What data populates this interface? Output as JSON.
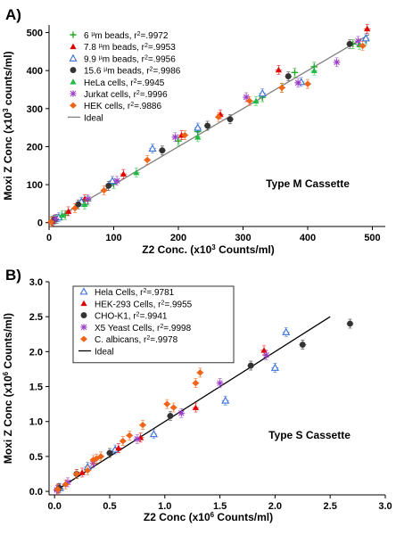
{
  "panel_labels": [
    "A)",
    "B)"
  ],
  "chart_data": [
    {
      "type": "scatter",
      "panel": "A)",
      "xlabel_parts": [
        "Z2 Conc. (x10",
        "3",
        " Counts/ml)"
      ],
      "ylabel_parts": [
        "Moxi Z Conc (x10",
        "3",
        " counts/ml)"
      ],
      "xlim": [
        0,
        520
      ],
      "ylim": [
        -10,
        520
      ],
      "xticks": [
        0,
        100,
        200,
        300,
        400,
        500
      ],
      "yticks": [
        0,
        100,
        200,
        300,
        400,
        500
      ],
      "annotation": "Type M Cassette",
      "legend_position": "top-left",
      "ideal": {
        "name": "Ideal",
        "x": [
          0,
          495
        ],
        "y": [
          0,
          495
        ],
        "color": "#808080"
      },
      "series": [
        {
          "name_parts": [
            "6 ",
            "µ",
            "m beads, r",
            "2",
            "=.9972"
          ],
          "marker": "plus",
          "color": "#22aa22",
          "points": [
            [
              5,
              5
            ],
            [
              12,
              10
            ],
            [
              25,
              20
            ],
            [
              60,
              58
            ],
            [
              100,
              102
            ],
            [
              200,
              215
            ],
            [
              230,
              240
            ],
            [
              330,
              330
            ],
            [
              360,
              355
            ],
            [
              380,
              395
            ],
            [
              410,
              410
            ],
            [
              470,
              470
            ],
            [
              490,
              480
            ]
          ]
        },
        {
          "name_parts": [
            "7.8 ",
            "µ",
            "m beads, r",
            "2",
            "=.9953"
          ],
          "marker": "triangle",
          "color": "#e00000",
          "points": [
            [
              5,
              4
            ],
            [
              30,
              30
            ],
            [
              55,
              62
            ],
            [
              115,
              128
            ],
            [
              205,
              230
            ],
            [
              265,
              285
            ],
            [
              355,
              402
            ],
            [
              492,
              510
            ]
          ]
        },
        {
          "name_parts": [
            "9.9 ",
            "µ",
            "m beads, r",
            "2",
            "=.9956"
          ],
          "marker": "triangle-open",
          "color": "#3a6fd8",
          "points": [
            [
              15,
              14
            ],
            [
              50,
              55
            ],
            [
              98,
              110
            ],
            [
              160,
              195
            ],
            [
              230,
              250
            ],
            [
              330,
              340
            ],
            [
              390,
              370
            ],
            [
              490,
              485
            ]
          ]
        },
        {
          "name_parts": [
            "15.6 ",
            "µ",
            "m beads, r",
            "2",
            "=.9986"
          ],
          "marker": "circle",
          "color": "#333333",
          "points": [
            [
              8,
              8
            ],
            [
              45,
              48
            ],
            [
              92,
              97
            ],
            [
              175,
              190
            ],
            [
              245,
              255
            ],
            [
              280,
              272
            ],
            [
              370,
              385
            ],
            [
              465,
              470
            ]
          ]
        },
        {
          "name_parts": [
            "HeLa cells, r",
            "2",
            "=.9945"
          ],
          "marker": "triangle",
          "color": "#22bb44",
          "points": [
            [
              20,
              20
            ],
            [
              55,
              48
            ],
            [
              135,
              132
            ],
            [
              230,
              225
            ],
            [
              320,
              320
            ],
            [
              410,
              400
            ],
            [
              480,
              468
            ]
          ]
        },
        {
          "name_parts": [
            "Jurkat cells, r",
            "2",
            "=.9996"
          ],
          "marker": "star",
          "color": "#9a3ec8",
          "points": [
            [
              10,
              10
            ],
            [
              60,
              62
            ],
            [
              105,
              110
            ],
            [
              195,
              225
            ],
            [
              305,
              330
            ],
            [
              385,
              368
            ],
            [
              445,
              422
            ],
            [
              478,
              478
            ]
          ]
        },
        {
          "name_parts": [
            "HEK cells, r",
            "2",
            "=.9886"
          ],
          "marker": "diamond",
          "color": "#f06418",
          "points": [
            [
              3,
              2
            ],
            [
              40,
              38
            ],
            [
              85,
              85
            ],
            [
              152,
              165
            ],
            [
              210,
              230
            ],
            [
              262,
              278
            ],
            [
              310,
              320
            ],
            [
              360,
              355
            ],
            [
              400,
              365
            ],
            [
              485,
              465
            ]
          ]
        }
      ],
      "legend_ideal": "Ideal"
    },
    {
      "type": "scatter",
      "panel": "B)",
      "xlabel_parts": [
        "Z2 Conc (x10",
        "6",
        " Counts/ml)"
      ],
      "ylabel_parts": [
        "Moxi Z Conc (x10",
        "6",
        " Counts/ml)"
      ],
      "xlim": [
        -0.05,
        3.0
      ],
      "ylim": [
        -0.05,
        3.0
      ],
      "xticks": [
        0.0,
        0.5,
        1.0,
        1.5,
        2.0,
        2.5,
        3.0
      ],
      "yticks": [
        0.0,
        0.5,
        1.0,
        1.5,
        2.0,
        2.5,
        3.0
      ],
      "xtick_labels": [
        "0.0",
        "0.5",
        "1.0",
        "1.5",
        "2.0",
        "2.5",
        "3.0"
      ],
      "ytick_labels": [
        "0.0",
        "0.5",
        "1.0",
        "1.5",
        "2.0",
        "2.5",
        "3.0"
      ],
      "annotation": "Type S Cassette",
      "legend_position": "top-left",
      "ideal": {
        "name": "Ideal",
        "x": [
          0,
          2.5
        ],
        "y": [
          0,
          2.5
        ],
        "color": "#000000"
      },
      "series": [
        {
          "name_parts": [
            "Hela Cells, r",
            "2",
            "=.9781"
          ],
          "marker": "triangle-open",
          "color": "#3a6fd8",
          "points": [
            [
              0.05,
              0.05
            ],
            [
              0.3,
              0.35
            ],
            [
              0.55,
              0.6
            ],
            [
              0.9,
              0.82
            ],
            [
              1.55,
              1.3
            ],
            [
              2.0,
              1.77
            ],
            [
              2.1,
              2.28
            ]
          ]
        },
        {
          "name_parts": [
            "HEK-293 Cells, r",
            "2",
            "=.9955"
          ],
          "marker": "triangle",
          "color": "#e00000",
          "points": [
            [
              0.03,
              0.04
            ],
            [
              0.25,
              0.27
            ],
            [
              0.58,
              0.62
            ],
            [
              0.78,
              0.77
            ],
            [
              1.28,
              1.2
            ],
            [
              1.9,
              2.02
            ]
          ]
        },
        {
          "name_parts": [
            "CHO-K1, r",
            "2",
            "=.9941"
          ],
          "marker": "circle",
          "color": "#333333",
          "points": [
            [
              0.04,
              0.05
            ],
            [
              0.2,
              0.25
            ],
            [
              0.5,
              0.55
            ],
            [
              1.05,
              1.08
            ],
            [
              1.78,
              1.8
            ],
            [
              2.25,
              2.1
            ],
            [
              2.68,
              2.4
            ]
          ]
        },
        {
          "name_parts": [
            "X5 Yeast Cells, r",
            "2",
            "=.9998"
          ],
          "marker": "star",
          "color": "#9a3ec8",
          "points": [
            [
              0.02,
              0.02
            ],
            [
              0.12,
              0.13
            ],
            [
              0.35,
              0.4
            ],
            [
              0.75,
              0.75
            ],
            [
              1.15,
              1.12
            ],
            [
              1.5,
              1.55
            ],
            [
              1.92,
              1.95
            ]
          ]
        },
        {
          "name_parts": [
            "C. albicans, r",
            "2",
            "=.9978"
          ],
          "marker": "diamond",
          "color": "#f06418",
          "points": [
            [
              0.03,
              0.03
            ],
            [
              0.1,
              0.1
            ],
            [
              0.2,
              0.25
            ],
            [
              0.3,
              0.3
            ],
            [
              0.35,
              0.45
            ],
            [
              0.38,
              0.47
            ],
            [
              0.42,
              0.5
            ],
            [
              0.62,
              0.72
            ],
            [
              0.68,
              0.8
            ],
            [
              0.8,
              0.95
            ],
            [
              1.02,
              1.25
            ],
            [
              1.08,
              1.2
            ],
            [
              1.28,
              1.55
            ],
            [
              1.32,
              1.7
            ]
          ]
        }
      ],
      "legend_ideal": "Ideal"
    }
  ]
}
